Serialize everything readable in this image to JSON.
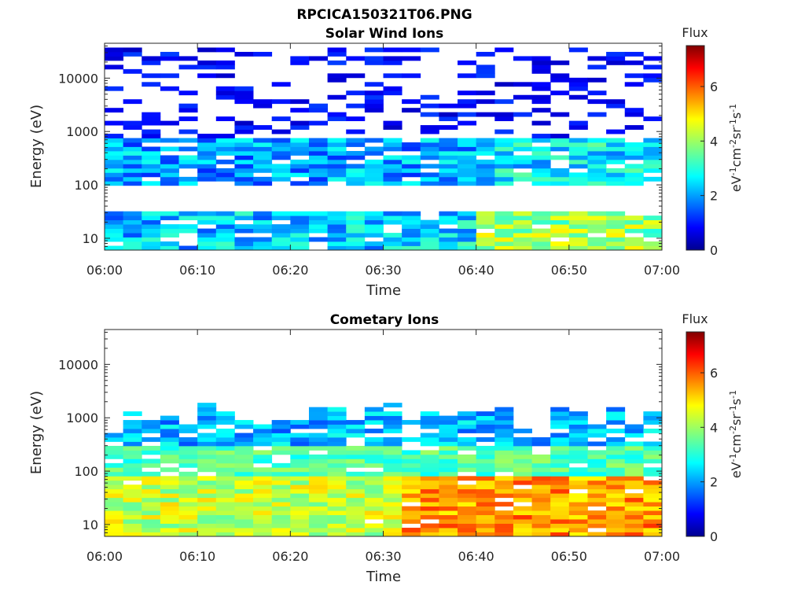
{
  "figure_title": "RPCICA150321T06.PNG",
  "chart_data": [
    {
      "type": "heatmap",
      "title": "Solar Wind Ions",
      "xlabel": "Time",
      "ylabel": "Energy (eV)",
      "x_ticks": [
        "06:00",
        "06:10",
        "06:20",
        "06:30",
        "06:40",
        "06:50",
        "07:00"
      ],
      "xlim": [
        "06:00",
        "07:00"
      ],
      "y_scale": "log",
      "y_ticks": [
        10,
        100,
        1000,
        10000
      ],
      "y_tick_labels": [
        "10",
        "100",
        "1000",
        "10000"
      ],
      "ylim": [
        6,
        45000
      ],
      "colorbar": {
        "title": "Flux",
        "label": "eV-1cm-2sr-1s-1",
        "ticks": [
          0,
          2,
          4,
          6
        ],
        "tick_labels": [
          "0",
          "2",
          "4",
          "6"
        ],
        "range": [
          0,
          7.5
        ],
        "colormap": "jet"
      },
      "columns": 30,
      "bands": [
        {
          "energy_range": [
            6,
            30
          ],
          "flux_range": [
            1.2,
            3.2
          ],
          "trend": "rises to about 4.5-5 after 06:40"
        },
        {
          "energy_range": [
            100,
            700
          ],
          "flux_range": [
            1.2,
            3.0
          ],
          "trend": "fairly constant, slightly higher after 06:40"
        },
        {
          "energy_range": [
            700,
            40000
          ],
          "flux_range": [
            0.5,
            1.4
          ],
          "trend": "sparse low-flux noise"
        }
      ]
    },
    {
      "type": "heatmap",
      "title": "Cometary Ions",
      "xlabel": "Time",
      "ylabel": "Energy (eV)",
      "x_ticks": [
        "06:00",
        "06:10",
        "06:20",
        "06:30",
        "06:40",
        "06:50",
        "07:00"
      ],
      "xlim": [
        "06:00",
        "07:00"
      ],
      "y_scale": "log",
      "y_ticks": [
        10,
        100,
        1000,
        10000
      ],
      "y_tick_labels": [
        "10",
        "100",
        "1000",
        "10000"
      ],
      "ylim": [
        6,
        45000
      ],
      "colorbar": {
        "title": "Flux",
        "label": "eV-1cm-2sr-1s-1",
        "ticks": [
          0,
          2,
          4,
          6
        ],
        "tick_labels": [
          "0",
          "2",
          "4",
          "6"
        ],
        "range": [
          0,
          7.5
        ],
        "colormap": "jet"
      },
      "columns": 30,
      "bands": [
        {
          "energy_range": [
            6,
            80
          ],
          "flux_range": [
            3.5,
            5.0
          ],
          "trend": "rises to about 5.5-6 after 06:35"
        },
        {
          "energy_range": [
            80,
            300
          ],
          "flux_range": [
            2.8,
            4.0
          ],
          "trend": "fairly constant"
        },
        {
          "energy_range": [
            300,
            1800
          ],
          "flux_range": [
            1.5,
            3.0
          ],
          "trend": "ragged upper edge"
        }
      ]
    }
  ]
}
